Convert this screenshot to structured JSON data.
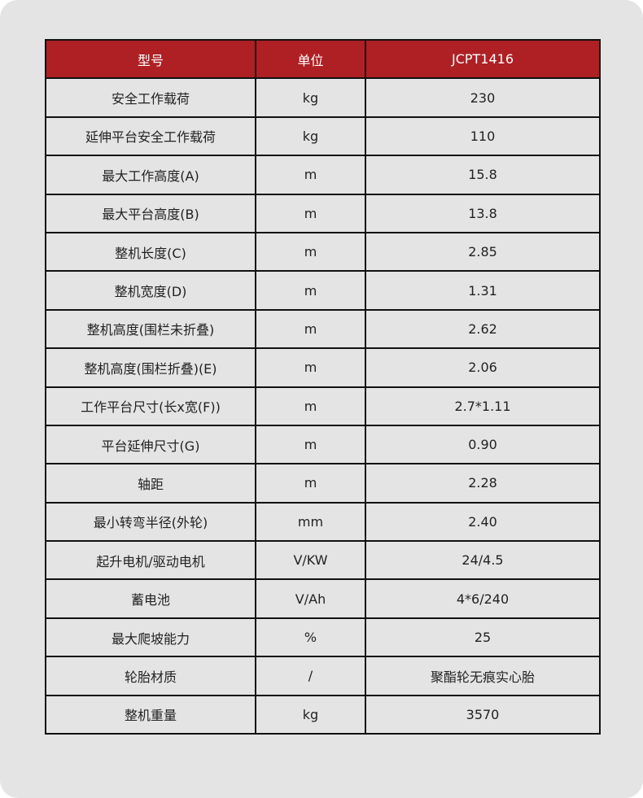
{
  "header": [
    "型号",
    "单位",
    "JCPT1416"
  ],
  "colors": {
    "header_bg": "#ae2024",
    "cell_bg": "#e4e4e4",
    "border": "#111111"
  },
  "rows": [
    [
      "安全工作载荷",
      "kg",
      "230"
    ],
    [
      "延伸平台安全工作载荷",
      "kg",
      "110"
    ],
    [
      "最大工作高度(A)",
      "m",
      "15.8"
    ],
    [
      "最大平台高度(B)",
      "m",
      "13.8"
    ],
    [
      "整机长度(C)",
      "m",
      "2.85"
    ],
    [
      "整机宽度(D)",
      "m",
      "1.31"
    ],
    [
      "整机高度(围栏未折叠)",
      "m",
      "2.62"
    ],
    [
      "整机高度(围栏折叠)(E)",
      "m",
      "2.06"
    ],
    [
      "工作平台尺寸(长x宽(F))",
      "m",
      "2.7*1.11"
    ],
    [
      "平台延伸尺寸(G)",
      "m",
      "0.90"
    ],
    [
      "轴距",
      "m",
      "2.28"
    ],
    [
      "最小转弯半径(外轮)",
      "mm",
      "2.40"
    ],
    [
      "起升电机/驱动电机",
      "V/KW",
      "24/4.5"
    ],
    [
      "蓄电池",
      "V/Ah",
      "4*6/240"
    ],
    [
      "最大爬坡能力",
      "%",
      "25"
    ],
    [
      "轮胎材质",
      "/",
      "聚酯轮无痕实心胎"
    ],
    [
      "整机重量",
      "kg",
      "3570"
    ]
  ]
}
